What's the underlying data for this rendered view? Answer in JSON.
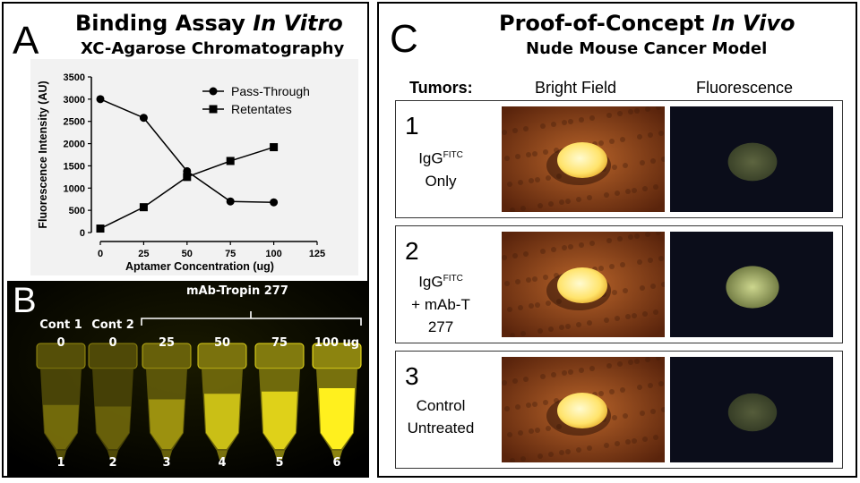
{
  "panel_a": {
    "letter": "A",
    "title_plain": "Binding Assay ",
    "title_italic": "In Vitro",
    "subtitle": "XC-Agarose Chromatography"
  },
  "chart_data": {
    "type": "line",
    "x": [
      0,
      25,
      50,
      75,
      100
    ],
    "series": [
      {
        "name": "Pass-Through",
        "marker": "circle",
        "values": [
          3000,
          2580,
          1380,
          700,
          680
        ]
      },
      {
        "name": "Retentates",
        "marker": "square",
        "values": [
          90,
          570,
          1250,
          1610,
          1920
        ]
      }
    ],
    "xlabel": "Aptamer Concentration (ug)",
    "ylabel": "Fluorescence Intensity (AU)",
    "xlim": [
      0,
      125
    ],
    "ylim": [
      0,
      3500
    ],
    "xticks": [
      "0",
      "25",
      "50",
      "75",
      "100",
      "125"
    ],
    "yticks": [
      "0",
      "500",
      "1000",
      "1500",
      "2000",
      "2500",
      "3000",
      "3500"
    ],
    "grid": false,
    "legend_position": "top-right"
  },
  "panel_b": {
    "letter": "B",
    "group_label": "mAb-Tropin 277",
    "tubes": [
      {
        "label": "Cont 1",
        "amount": "0",
        "number": "1",
        "glow": 0.25
      },
      {
        "label": "Cont 2",
        "amount": "0",
        "number": "2",
        "glow": 0.18
      },
      {
        "label": "",
        "amount": "25",
        "number": "3",
        "glow": 0.5
      },
      {
        "label": "",
        "amount": "50",
        "number": "4",
        "glow": 0.75
      },
      {
        "label": "",
        "amount": "75",
        "number": "5",
        "glow": 0.85
      },
      {
        "label": "",
        "amount": "100 ug",
        "number": "6",
        "glow": 1.0
      }
    ]
  },
  "panel_c": {
    "letter": "C",
    "title_plain": "Proof-of-Concept ",
    "title_italic": "In Vivo",
    "subtitle": "Nude Mouse Cancer Model",
    "col_tumors": "Tumors:",
    "col_bright": "Bright Field",
    "col_fluor": "Fluorescence",
    "rows": [
      {
        "num": "1",
        "line1": "IgG",
        "sup": "FITC",
        "line2": "Only",
        "line3": "",
        "fluor_glow": 0.35
      },
      {
        "num": "2",
        "line1": "IgG",
        "sup": "FITC",
        "line2": "+ mAb-T",
        "line3": "277",
        "fluor_glow": 0.9
      },
      {
        "num": "3",
        "line1": "",
        "sup": "",
        "line2": "Control",
        "line3": "Untreated",
        "fluor_glow": 0.3
      }
    ]
  }
}
